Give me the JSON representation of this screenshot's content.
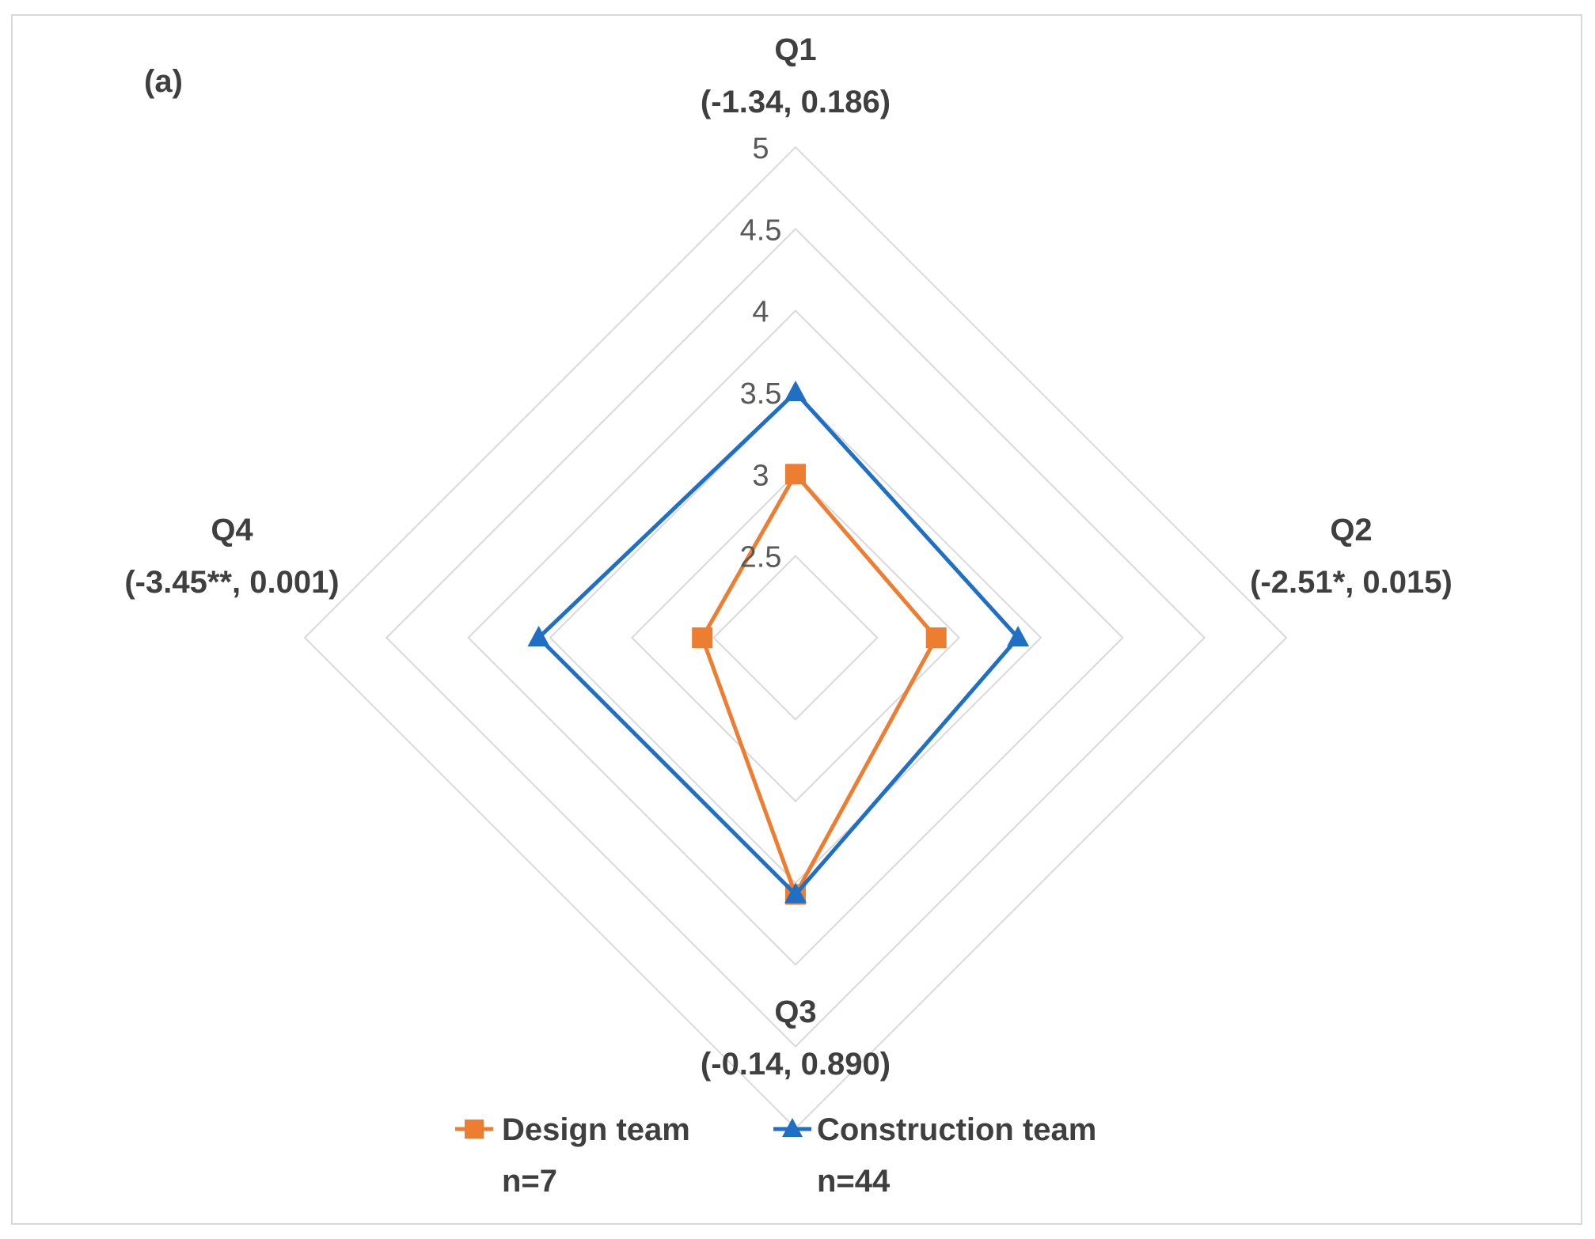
{
  "chart_data": {
    "type": "radar",
    "panel_label": "(a)",
    "axes": [
      {
        "name": "Q1",
        "stat": "(-1.34, 0.186)"
      },
      {
        "name": "Q2",
        "stat": "(-2.51*, 0.015)"
      },
      {
        "name": "Q3",
        "stat": "(-0.14, 0.890)"
      },
      {
        "name": "Q4",
        "stat": "(-3.45**, 0.001)"
      }
    ],
    "r_min": 2,
    "r_max": 5,
    "ticks": [
      2.5,
      3,
      3.5,
      4,
      4.5,
      5
    ],
    "tick_labels": [
      "2.5",
      "3",
      "3.5",
      "4",
      "4.5",
      "5"
    ],
    "series": [
      {
        "name": "Design team",
        "n_label": "n=7",
        "values": [
          3.0,
          2.86,
          3.57,
          2.57
        ],
        "color": "#ED7D31",
        "marker": "square"
      },
      {
        "name": "Construction team",
        "n_label": "n=44",
        "values": [
          3.5,
          3.36,
          3.57,
          3.57
        ],
        "color": "#1F6FC5",
        "marker": "triangle"
      }
    ],
    "grid_color": "#d9d9d9"
  }
}
